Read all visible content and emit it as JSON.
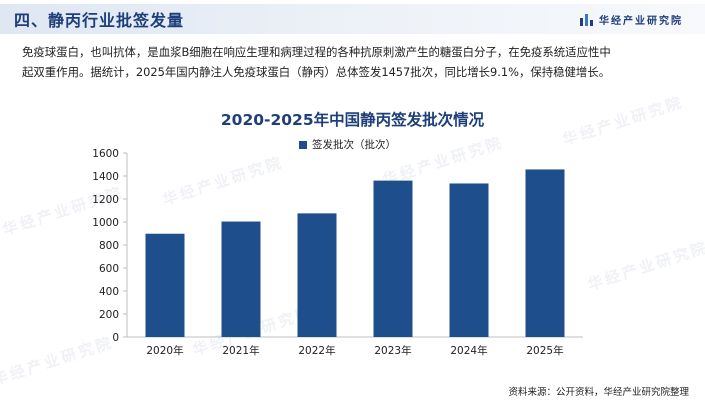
{
  "header": {
    "title": "四、静丙行业批签发量",
    "brand": "华经产业研究院"
  },
  "intro": {
    "line1": "免疫球蛋白，也叫抗体，是血浆B细胞在响应生理和病理过程的各种抗原刺激产生的糖蛋白分子，在免疫系统适应性中",
    "line2": "起双重作用。据统计，2025年国内静注人免疫球蛋白（静丙）总体签发1457批次，同比增长9.1%，保持稳健增长。"
  },
  "watermark_text": "华经产业研究院",
  "source": "资料来源：公开资料，华经产业研究院整理",
  "colors": {
    "bar": "#1f4e8c",
    "title": "#1e3f7a",
    "axis": "#bfbfbf"
  },
  "chart_data": {
    "type": "bar",
    "title": "2020-2025年中国静丙签发批次情况",
    "categories": [
      "2020年",
      "2021年",
      "2022年",
      "2023年",
      "2024年",
      "2025年"
    ],
    "series": [
      {
        "name": "签发批次（批次）",
        "values": [
          898,
          1004,
          1075,
          1360,
          1335,
          1457
        ]
      }
    ],
    "ylim": [
      0,
      1600
    ],
    "yticks": [
      0,
      200,
      400,
      600,
      800,
      1000,
      1200,
      1400,
      1600
    ],
    "legend": "top-center",
    "grid": false
  }
}
